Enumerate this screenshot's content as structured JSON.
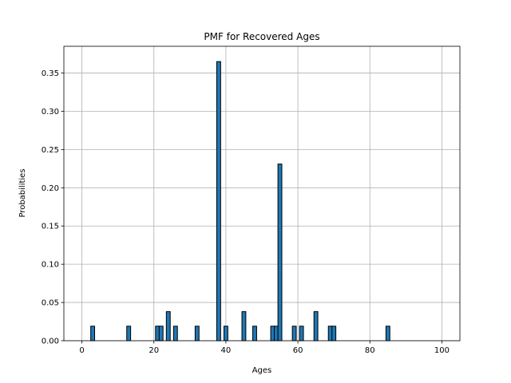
{
  "chart_data": {
    "type": "bar",
    "title": "PMF for Recovered Ages",
    "xlabel": "Ages",
    "ylabel": "Probabilities",
    "xlim": [
      -5,
      105
    ],
    "ylim": [
      0,
      0.385
    ],
    "xticks": [
      "0",
      "20",
      "40",
      "60",
      "80",
      "100"
    ],
    "yticks": [
      "0.00",
      "0.05",
      "0.10",
      "0.15",
      "0.20",
      "0.25",
      "0.30",
      "0.35"
    ],
    "grid": true,
    "bar_color": "#1f77b4",
    "edge_color": "#000000",
    "x": [
      3,
      13,
      21,
      22,
      24,
      26,
      32,
      38,
      40,
      45,
      48,
      53,
      54,
      55,
      59,
      61,
      65,
      69,
      70,
      85
    ],
    "values": [
      0.019,
      0.019,
      0.019,
      0.019,
      0.038,
      0.019,
      0.019,
      0.365,
      0.019,
      0.038,
      0.019,
      0.019,
      0.019,
      0.231,
      0.019,
      0.019,
      0.038,
      0.019,
      0.019,
      0.019
    ]
  }
}
